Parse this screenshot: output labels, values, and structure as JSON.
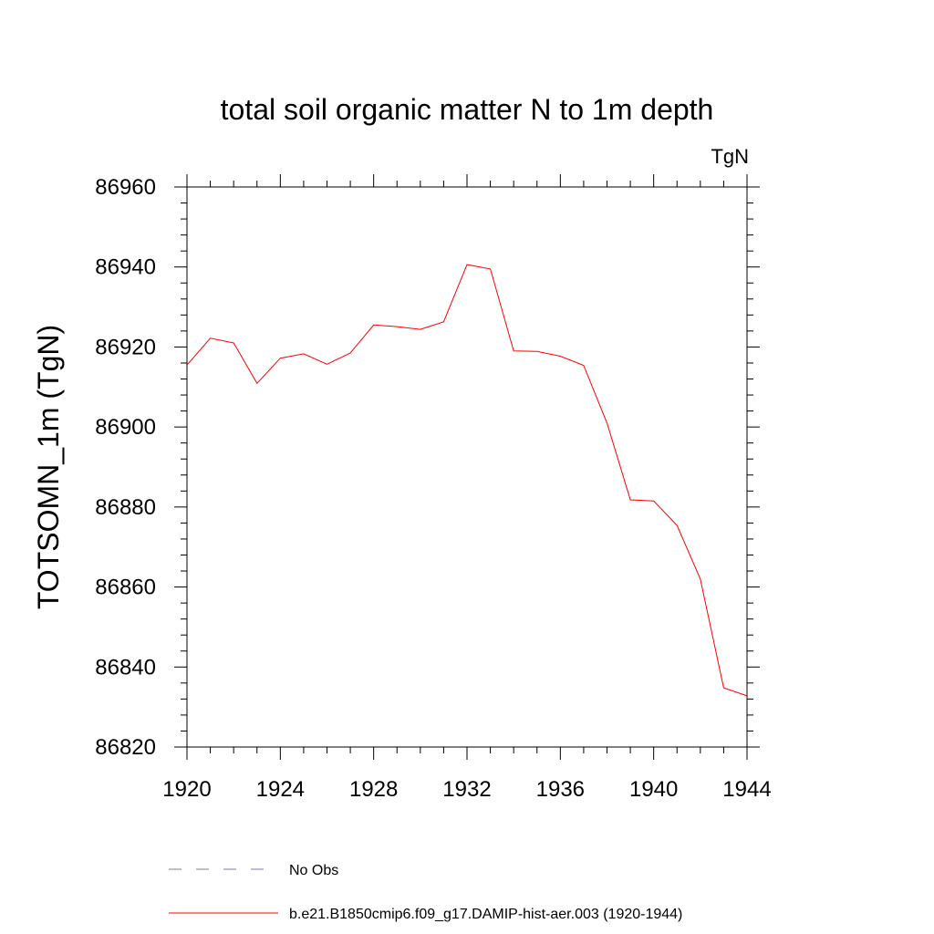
{
  "chart_data": {
    "type": "line",
    "title": "total soil organic matter N to 1m depth",
    "units_label": "TgN",
    "ylabel": "TOTSOMN_1m  (TgN)",
    "xlabel": "",
    "xlim": [
      1920,
      1944
    ],
    "ylim": [
      86820,
      86960
    ],
    "xticks": [
      1920,
      1924,
      1928,
      1932,
      1936,
      1940,
      1944
    ],
    "yticks": [
      86820,
      86840,
      86860,
      86880,
      86900,
      86920,
      86940,
      86960
    ],
    "x_minor_step": 1,
    "y_minor_step": 4,
    "grid": false,
    "legend_position": "bottom",
    "series": [
      {
        "name": "b.e21.B1850cmip6.f09_g17.DAMIP-hist-aer.003 (1920-1944)",
        "color": "#ff0000",
        "style": "solid",
        "x": [
          1920,
          1921,
          1922,
          1923,
          1924,
          1925,
          1926,
          1927,
          1928,
          1929,
          1930,
          1931,
          1932,
          1933,
          1934,
          1935,
          1936,
          1937,
          1938,
          1939,
          1940,
          1941,
          1942,
          1943,
          1944
        ],
        "values": [
          86915.5,
          86922.2,
          86921.0,
          86910.9,
          86917.2,
          86918.3,
          86915.7,
          86918.5,
          86925.5,
          86925.1,
          86924.4,
          86926.3,
          86940.6,
          86939.5,
          86919.0,
          86918.9,
          86917.7,
          86915.4,
          86901.0,
          86881.8,
          86881.5,
          86875.4,
          86862.0,
          86834.8,
          86832.8
        ]
      }
    ],
    "legend": [
      {
        "label": "No Obs",
        "color": "#7b72cc",
        "style": "dashed"
      },
      {
        "label": "b.e21.B1850cmip6.f09_g17.DAMIP-hist-aer.003 (1920-1944)",
        "color": "#ff0000",
        "style": "solid"
      }
    ]
  }
}
